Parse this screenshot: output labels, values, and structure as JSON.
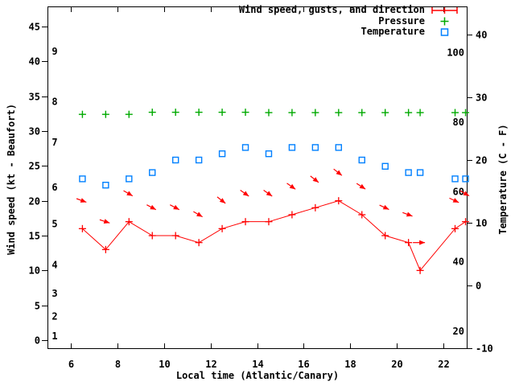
{
  "legend": [
    {
      "label": "Wind speed, gusts, and direction",
      "marker": "red-line-plus-sample",
      "color": "#ff0000"
    },
    {
      "label": "Pressure",
      "marker": "green-plus-sample",
      "color": "#00aa00"
    },
    {
      "label": "Temperature",
      "marker": "blue-open-square-sample",
      "color": "#0080ff"
    }
  ],
  "axes": {
    "x": {
      "label": "Local time (Atlantic/Canary)",
      "range": [
        5,
        23
      ],
      "ticks": [
        6,
        8,
        10,
        12,
        14,
        16,
        18,
        20,
        22
      ]
    },
    "y_left": {
      "label": "Wind speed (kt - Beaufort)",
      "ticks_kt": [
        0,
        5,
        10,
        15,
        20,
        25,
        30,
        35,
        40,
        45
      ],
      "beaufort_labels": [
        {
          "b": 1,
          "kt": 0.6
        },
        {
          "b": 2,
          "kt": 3.4
        },
        {
          "b": 3,
          "kt": 6.7
        },
        {
          "b": 4,
          "kt": 10.8
        },
        {
          "b": 5,
          "kt": 16.7
        },
        {
          "b": 6,
          "kt": 21.9
        },
        {
          "b": 7,
          "kt": 28.4
        },
        {
          "b": 8,
          "kt": 34.2
        },
        {
          "b": 9,
          "kt": 41.4
        }
      ]
    },
    "y_right": {
      "label": "Temperature (C - F)",
      "ticks_c": [
        -10,
        0,
        10,
        20,
        30,
        40
      ],
      "inner_labels_f": [
        20,
        40,
        60,
        80,
        100
      ]
    }
  },
  "chart_data": {
    "type": "line",
    "title": "",
    "xlabel": "Local time (Atlantic/Canary)",
    "ylabel_left": "Wind speed (kt - Beaufort)",
    "ylabel_right": "Temperature (C - F)",
    "x_range_hours": [
      5,
      23
    ],
    "y_left_range_kt": [
      0,
      45
    ],
    "y_right_range_c": [
      -10,
      40
    ],
    "grid": false,
    "legend_position": "top-right-inside",
    "x": [
      6.5,
      7.5,
      8.5,
      9.5,
      10.5,
      11.5,
      12.5,
      13.5,
      14.5,
      15.5,
      16.5,
      17.5,
      18.5,
      19.5,
      20.5,
      21.0,
      22.5,
      22.95
    ],
    "series": [
      {
        "id": "wind_speed",
        "name": "Wind speed (kt)",
        "style": "line+plus-points",
        "color": "#ff0000",
        "axis": "left",
        "values": [
          16,
          13,
          17,
          15,
          15,
          14,
          16,
          17,
          17,
          18,
          19,
          20,
          18,
          15,
          14,
          10,
          16,
          17
        ]
      },
      {
        "id": "wind_gusts",
        "name": "Wind gusts (kt) with direction arrows",
        "style": "vectors",
        "color": "#ff0000",
        "axis": "left",
        "values": [
          20,
          17,
          21,
          19,
          19,
          18,
          20,
          21,
          21,
          22,
          23,
          24,
          22,
          19,
          18,
          14,
          20,
          21
        ],
        "arrow_angle_deg_below_horizontal": [
          20,
          18,
          30,
          28,
          28,
          30,
          38,
          35,
          35,
          35,
          38,
          38,
          33,
          25,
          20,
          0,
          25,
          30
        ]
      },
      {
        "id": "pressure",
        "name": "Pressure (axis not labeled in plot)",
        "style": "plus-points",
        "color": "#00aa00",
        "axis": "left-equivalent",
        "values_left_axis_kt_equivalent": [
          32.4,
          32.4,
          32.4,
          32.7,
          32.7,
          32.7,
          32.7,
          32.7,
          32.65,
          32.65,
          32.65,
          32.65,
          32.65,
          32.65,
          32.65,
          32.65,
          32.65,
          32.65
        ]
      },
      {
        "id": "temperature_c",
        "name": "Temperature (C)",
        "style": "open-square-points",
        "color": "#0080ff",
        "axis": "right",
        "values": [
          17,
          16,
          17,
          18,
          20,
          20,
          21,
          22,
          21,
          22,
          22,
          22,
          20,
          19,
          18,
          18,
          17,
          17
        ]
      }
    ]
  }
}
